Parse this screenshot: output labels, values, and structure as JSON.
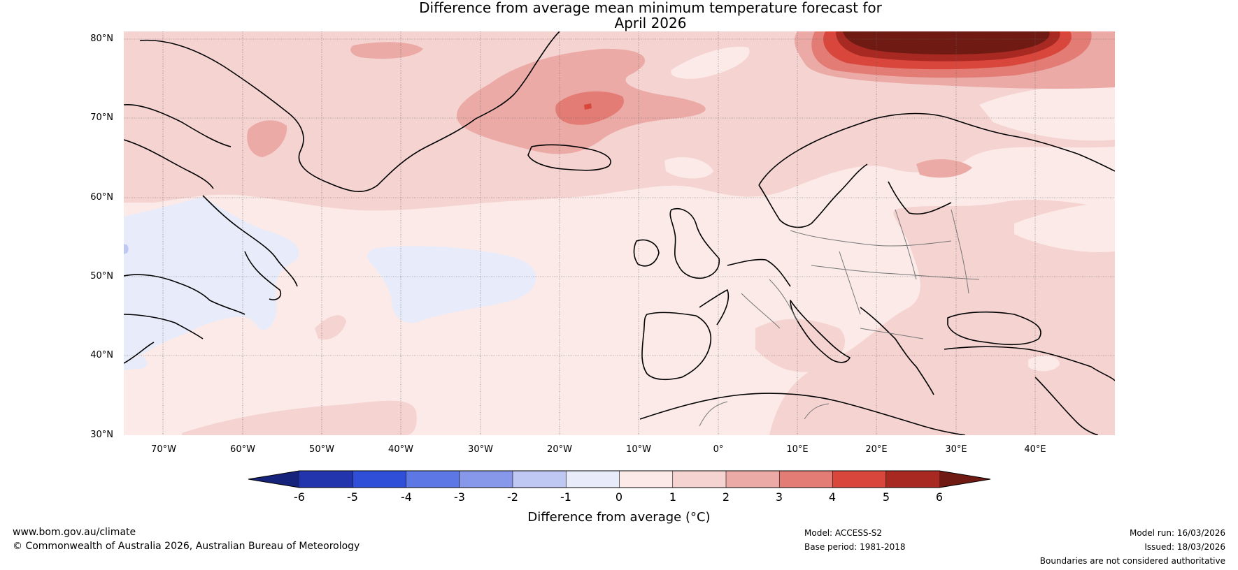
{
  "title": {
    "line1": "Difference from average mean minimum temperature forecast for",
    "line2": "April 2026"
  },
  "map": {
    "lat_labels": [
      "80°N",
      "70°N",
      "60°N",
      "50°N",
      "40°N",
      "30°N"
    ],
    "lon_labels": [
      "70°W",
      "60°W",
      "50°W",
      "40°W",
      "30°W",
      "20°W",
      "10°W",
      "0°",
      "10°E",
      "20°E",
      "30°E",
      "40°E"
    ]
  },
  "colorbar": {
    "ticks": [
      "-6",
      "-5",
      "-4",
      "-3",
      "-2",
      "-1",
      "0",
      "1",
      "2",
      "3",
      "4",
      "5",
      "6"
    ],
    "label": "Difference from average (°C)",
    "colors": {
      "below_min": "#15237a",
      "n6_n5": "#2235ad",
      "n5_n4": "#2f4fd9",
      "n4_n3": "#5d77e4",
      "n3_n2": "#8798ea",
      "n2_n1": "#bfc8f3",
      "n1_0": "#e8ecfa",
      "p0_1": "#fbeae8",
      "p1_2": "#f5d3d1",
      "p2_3": "#ebaaa6",
      "p3_4": "#e27c74",
      "p4_5": "#d8463c",
      "p5_6": "#a82822",
      "above_max": "#701a14"
    }
  },
  "footer": {
    "website": "www.bom.gov.au/climate",
    "copyright": "© Commonwealth of Australia 2026, Australian Bureau of Meteorology",
    "model": "Model: ACCESS-S2",
    "base_period": "Base period: 1981-2018",
    "model_run": "Model run: 16/03/2026",
    "issued": "Issued: 18/03/2026",
    "disclaimer": "Boundaries are not considered authoritative"
  }
}
